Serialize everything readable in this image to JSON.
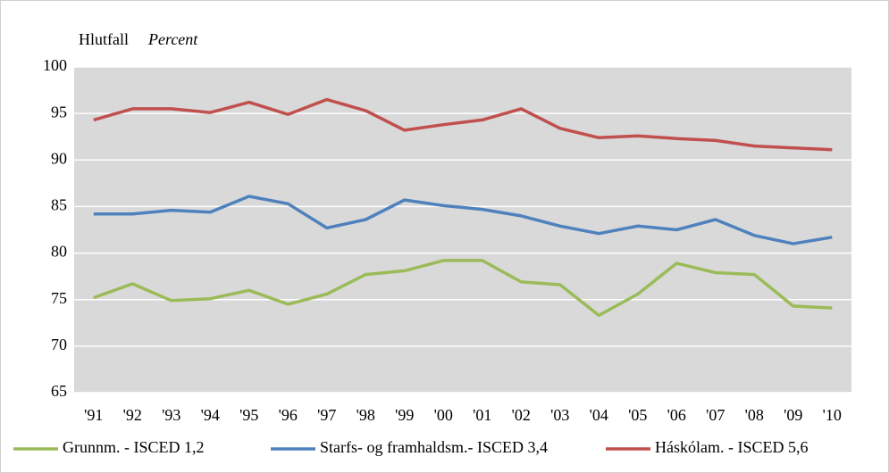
{
  "chart_data": {
    "type": "line",
    "ylabel": "Hlutfall",
    "ylabel_italic": "Percent",
    "categories": [
      "'91",
      "'92",
      "'93",
      "'94",
      "'95",
      "'96",
      "'97",
      "'98",
      "'99",
      "'00",
      "'01",
      "'02",
      "'03",
      "'04",
      "'05",
      "'06",
      "'07",
      "'08",
      "'09",
      "'10"
    ],
    "series": [
      {
        "name": "Grunnm. - ISCED 1,2",
        "color": "#9bbb59",
        "values": [
          75.2,
          76.7,
          74.9,
          75.1,
          76.0,
          74.5,
          75.6,
          77.7,
          78.1,
          79.2,
          79.2,
          76.9,
          76.6,
          73.3,
          75.6,
          78.9,
          77.9,
          77.7,
          74.3,
          74.1
        ]
      },
      {
        "name": "Starfs- og framhaldsm.- ISCED 3,4",
        "color": "#4f81bd",
        "values": [
          84.2,
          84.2,
          84.6,
          84.4,
          86.1,
          85.3,
          82.7,
          83.6,
          85.7,
          85.1,
          84.7,
          84.0,
          82.9,
          82.1,
          82.9,
          82.5,
          83.6,
          81.9,
          81.0,
          81.7
        ]
      },
      {
        "name": "Háskólam. - ISCED 5,6",
        "color": "#c0504d",
        "values": [
          94.3,
          95.5,
          95.5,
          95.1,
          96.2,
          94.9,
          96.5,
          95.3,
          93.2,
          93.8,
          94.3,
          95.5,
          93.4,
          92.4,
          92.6,
          92.3,
          92.1,
          91.5,
          91.3,
          91.1
        ]
      }
    ],
    "ylim": [
      65,
      100
    ],
    "yticks": [
      65,
      70,
      75,
      80,
      85,
      90,
      95,
      100
    ],
    "grid": true,
    "legend": "bottom"
  }
}
